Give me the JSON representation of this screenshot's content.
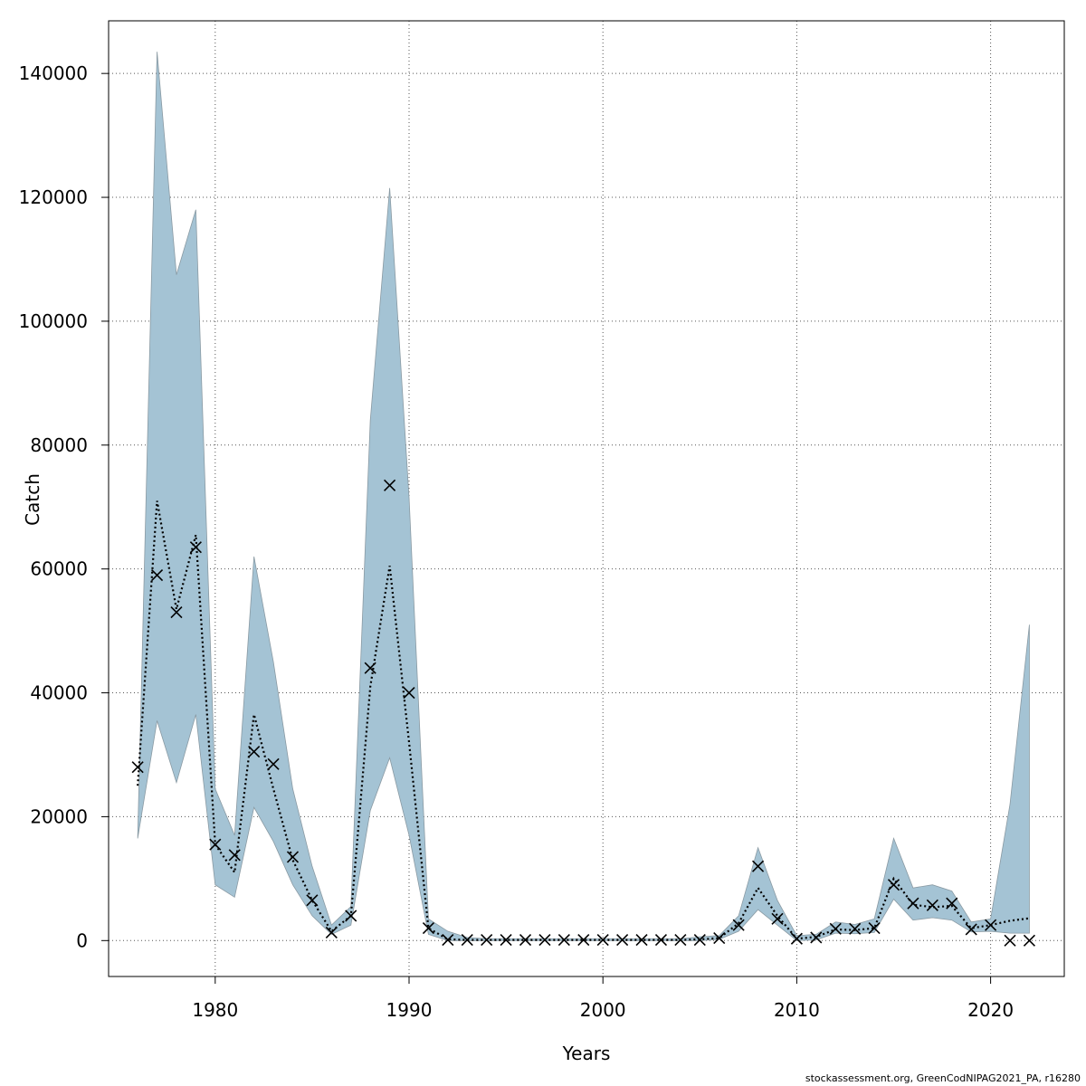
{
  "chart_data": {
    "type": "line",
    "xlabel": "Years",
    "ylabel": "Catch",
    "xlim": [
      1974.5,
      2023.8
    ],
    "ylim": [
      -5800,
      148500
    ],
    "x_ticks": [
      1980,
      1990,
      2000,
      2010,
      2020
    ],
    "y_ticks": [
      0,
      20000,
      40000,
      60000,
      80000,
      100000,
      120000,
      140000
    ],
    "grid": true,
    "band_color": "#a4c3d4",
    "band_stroke": "#8a9aa3",
    "x": [
      1976,
      1977,
      1978,
      1979,
      1980,
      1981,
      1982,
      1983,
      1984,
      1985,
      1986,
      1987,
      1988,
      1989,
      1990,
      1991,
      1992,
      1993,
      1994,
      1995,
      1996,
      1997,
      1998,
      1999,
      2000,
      2001,
      2002,
      2003,
      2004,
      2005,
      2006,
      2007,
      2008,
      2009,
      2010,
      2011,
      2012,
      2013,
      2014,
      2015,
      2016,
      2017,
      2018,
      2019,
      2020,
      2021,
      2022
    ],
    "series": [
      {
        "role": "estimate",
        "style": "dotted-line",
        "values": [
          25000,
          71000,
          53500,
          65500,
          15500,
          11000,
          36500,
          24500,
          13000,
          6500,
          1500,
          4000,
          41000,
          60500,
          32000,
          2000,
          200,
          100,
          100,
          100,
          100,
          100,
          100,
          100,
          100,
          100,
          100,
          100,
          100,
          200,
          400,
          2800,
          8500,
          4000,
          300,
          600,
          1800,
          1700,
          2000,
          10000,
          5800,
          5400,
          5600,
          2000,
          2500,
          3200,
          3600
        ]
      },
      {
        "role": "upper",
        "values": [
          16500,
          143500,
          107500,
          118000,
          24500,
          17000,
          62000,
          45000,
          24500,
          12000,
          2500,
          5500,
          84000,
          121500,
          71500,
          3500,
          1500,
          500,
          300,
          300,
          300,
          300,
          300,
          300,
          300,
          300,
          300,
          300,
          300,
          600,
          800,
          4000,
          15000,
          6500,
          800,
          1000,
          3000,
          2600,
          3500,
          16500,
          8500,
          9000,
          8000,
          3000,
          3500,
          22000,
          51000
        ]
      },
      {
        "role": "lower",
        "values": [
          16500,
          35500,
          25500,
          36500,
          9000,
          7000,
          21500,
          16000,
          9000,
          4000,
          1000,
          2500,
          21000,
          29500,
          17000,
          1000,
          0,
          0,
          0,
          0,
          0,
          0,
          0,
          0,
          0,
          0,
          0,
          0,
          0,
          0,
          200,
          1500,
          5000,
          2500,
          0,
          100,
          1200,
          1100,
          1300,
          6700,
          3300,
          3700,
          3300,
          1400,
          1500,
          1200,
          1200
        ]
      },
      {
        "role": "observed",
        "style": "x-markers",
        "values": [
          28000,
          59000,
          53000,
          63500,
          15500,
          13800,
          30500,
          28500,
          13500,
          6500,
          1300,
          4000,
          44000,
          73500,
          40000,
          2000,
          100,
          100,
          100,
          100,
          100,
          100,
          100,
          100,
          100,
          100,
          100,
          100,
          100,
          100,
          400,
          2500,
          12000,
          3500,
          300,
          500,
          1900,
          1900,
          2000,
          9000,
          6000,
          5700,
          6000,
          1800,
          2500,
          0,
          0
        ]
      }
    ]
  },
  "footer": {
    "credit": "stockassessment.org, GreenCodNIPAG2021_PA, r16280"
  }
}
